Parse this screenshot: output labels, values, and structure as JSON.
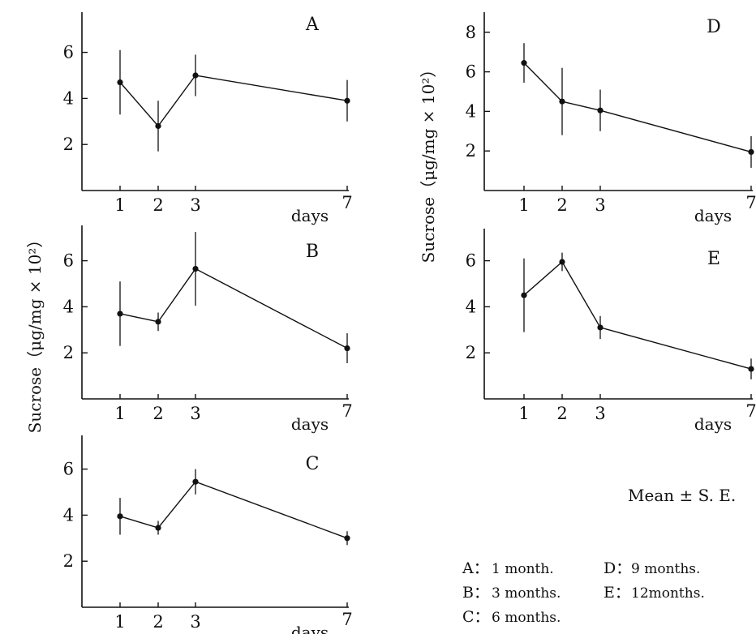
{
  "y_axis_label": "Sucrose（μg/mg × 10²）",
  "note": "Mean ± S. E.",
  "legend": {
    "rows": [
      [
        {
          "key": "A：",
          "text": "1 month."
        },
        {
          "key": "D：",
          "text": "9 months."
        }
      ],
      [
        {
          "key": "B：",
          "text": "3 months."
        },
        {
          "key": "E：",
          "text": "12months."
        }
      ],
      [
        {
          "key": "C：",
          "text": "6 months."
        }
      ]
    ]
  },
  "chart_data": [
    {
      "panel": "A",
      "type": "line",
      "xlabel": "days",
      "x": [
        1,
        2,
        3,
        7
      ],
      "x_tick_labels": [
        "1",
        "2",
        "3",
        "7"
      ],
      "y": [
        4.7,
        2.8,
        5.0,
        3.9
      ],
      "err": [
        1.4,
        1.1,
        0.9,
        0.9
      ],
      "yticks": [
        2,
        4,
        6
      ],
      "ylim": [
        0,
        7.5
      ],
      "grid": false
    },
    {
      "panel": "B",
      "type": "line",
      "xlabel": "days",
      "x": [
        1,
        2,
        3,
        7
      ],
      "x_tick_labels": [
        "1",
        "2",
        "3",
        "7"
      ],
      "y": [
        3.7,
        3.35,
        5.65,
        2.2
      ],
      "err": [
        1.4,
        0.4,
        1.6,
        0.65
      ],
      "yticks": [
        2,
        4,
        6
      ],
      "ylim": [
        0,
        7.5
      ],
      "grid": false
    },
    {
      "panel": "C",
      "type": "line",
      "xlabel": "days",
      "x": [
        1,
        2,
        3,
        7
      ],
      "x_tick_labels": [
        "1",
        "2",
        "3",
        "7"
      ],
      "y": [
        3.95,
        3.45,
        5.45,
        3.0
      ],
      "err": [
        0.8,
        0.3,
        0.55,
        0.3
      ],
      "yticks": [
        2,
        4,
        6
      ],
      "ylim": [
        0,
        7.5
      ],
      "grid": false
    },
    {
      "panel": "D",
      "type": "line",
      "xlabel": "days",
      "x": [
        1,
        2,
        3,
        7
      ],
      "x_tick_labels": [
        "1",
        "2",
        "3",
        "7"
      ],
      "y": [
        6.45,
        4.5,
        4.05,
        1.95
      ],
      "err": [
        1.0,
        1.7,
        1.05,
        0.8
      ],
      "yticks": [
        2,
        4,
        6,
        8
      ],
      "ylim": [
        0,
        9
      ],
      "grid": false
    },
    {
      "panel": "E",
      "type": "line",
      "xlabel": "days",
      "x": [
        1,
        2,
        3,
        7
      ],
      "x_tick_labels": [
        "1",
        "2",
        "3",
        "7"
      ],
      "y": [
        4.5,
        5.95,
        3.1,
        1.3
      ],
      "err": [
        1.6,
        0.4,
        0.5,
        0.45
      ],
      "yticks": [
        2,
        4,
        6
      ],
      "ylim": [
        0,
        7.5
      ],
      "grid": false
    }
  ]
}
